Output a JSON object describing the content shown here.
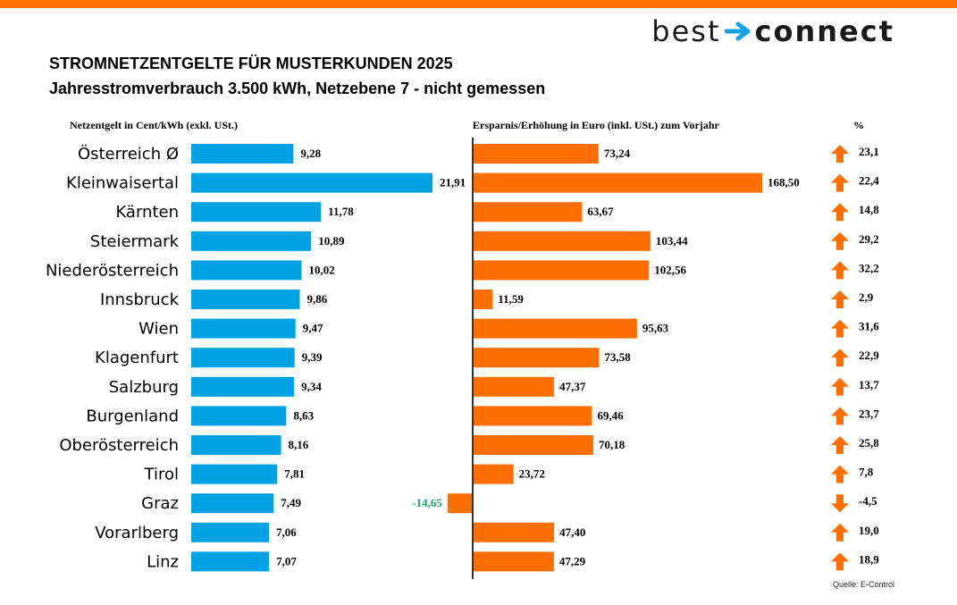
{
  "colors": {
    "top_bar": "#ff7300",
    "blue_bar": "#00a2e4",
    "orange_bar": "#ff6e00",
    "arrow": "#ff6e00",
    "negative_label": "#1aa868",
    "logo_arrow": "#1aa0e6",
    "axis": "#333333"
  },
  "logo": {
    "word1": "best",
    "word2": "connect",
    "icon": "arrow-right-icon"
  },
  "header": {
    "title": "STROMNETZENTGELTE FÜR MUSTERKUNDEN 2025",
    "subtitle": "Jahresstromverbrauch 3.500 kWh, Netzebene 7 - nicht gemessen"
  },
  "columns": {
    "left": "Netzentgelt in Cent/kWh (exkl. USt.)",
    "middle": "Ersparnis/Erhöhung in Euro (inkl. USt.) zum Vorjahr",
    "right": "%"
  },
  "source": "Quelle: E-Control",
  "chart_data": {
    "type": "bar",
    "categories": [
      "Österreich Ø",
      "Kleinwaisertal",
      "Kärnten",
      "Steiermark",
      "Niederösterreich",
      "Innsbruck",
      "Wien",
      "Klagenfurt",
      "Salzburg",
      "Burgenland",
      "Oberösterreich",
      "Tirol",
      "Graz",
      "Vorarlberg",
      "Linz"
    ],
    "series": [
      {
        "name": "Netzentgelt in Cent/kWh (exkl. USt.)",
        "values": [
          9.28,
          21.91,
          11.78,
          10.89,
          10.02,
          9.86,
          9.47,
          9.39,
          9.34,
          8.63,
          8.16,
          7.81,
          7.49,
          7.06,
          7.07
        ],
        "labels": [
          "9,28",
          "21,91",
          "11,78",
          "10,89",
          "10,02",
          "9,86",
          "9,47",
          "9,39",
          "9,34",
          "8,63",
          "8,16",
          "7,81",
          "7,49",
          "7,06",
          "7,07"
        ]
      },
      {
        "name": "Ersparnis/Erhöhung in Euro (inkl. USt.) zum Vorjahr",
        "values": [
          73.24,
          168.5,
          63.67,
          103.44,
          102.56,
          11.59,
          95.63,
          73.58,
          47.37,
          69.46,
          70.18,
          23.72,
          -14.65,
          47.4,
          47.29
        ],
        "labels": [
          "73,24",
          "168,50",
          "63,67",
          "103,44",
          "102,56",
          "11,59",
          "95,63",
          "73,58",
          "47,37",
          "69,46",
          "70,18",
          "23,72",
          "-14,65",
          "47,40",
          "47,29"
        ]
      },
      {
        "name": "%",
        "values": [
          23.1,
          22.4,
          14.8,
          29.2,
          32.2,
          2.9,
          31.6,
          22.9,
          13.7,
          23.7,
          25.8,
          7.8,
          -4.5,
          19.0,
          18.9
        ],
        "labels": [
          "23,1",
          "22,4",
          "14,8",
          "29,2",
          "32,2",
          "2,9",
          "31,6",
          "22,9",
          "13,7",
          "23,7",
          "25,8",
          "7,8",
          "-4,5",
          "19,0",
          "18,9"
        ]
      }
    ],
    "icons": {
      "up": "arrow-up-icon",
      "down": "arrow-down-icon"
    },
    "grid": false,
    "legend": "none"
  }
}
